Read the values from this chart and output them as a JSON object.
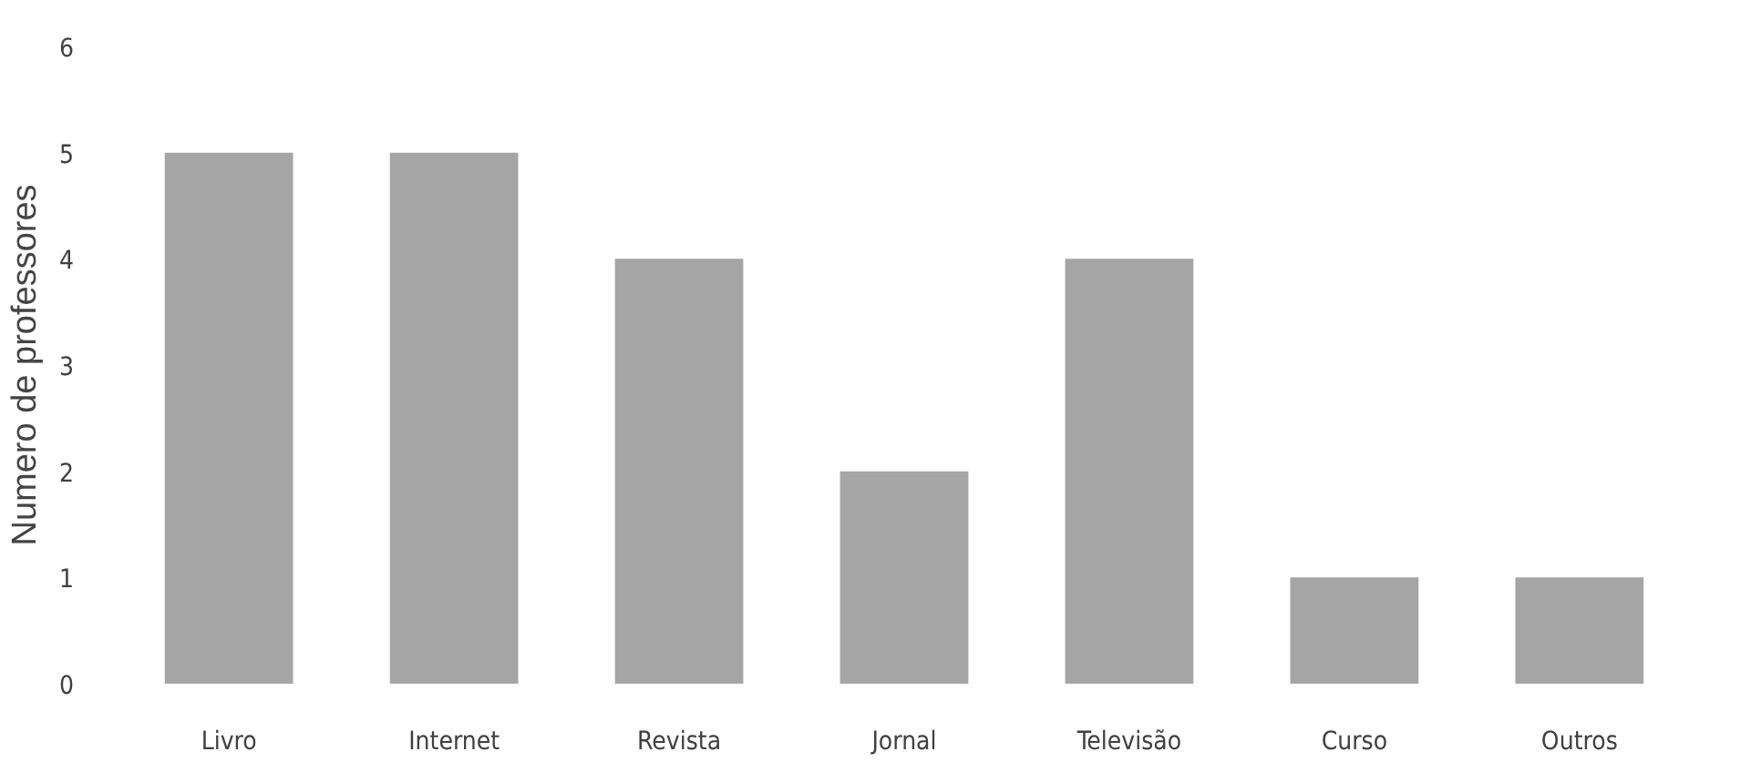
{
  "chart_data": {
    "type": "bar",
    "ylabel": "Numero de professores",
    "categories": [
      "Livro",
      "Internet",
      "Revista",
      "Jornal",
      "Televisão",
      "Curso",
      "Outros"
    ],
    "values": [
      5,
      5,
      4,
      2,
      4,
      1,
      1
    ],
    "color": "#a5a5a5",
    "ylim": [
      0,
      6
    ],
    "yticks": [
      0,
      1,
      2,
      3,
      4,
      5,
      6
    ],
    "grid": false
  }
}
